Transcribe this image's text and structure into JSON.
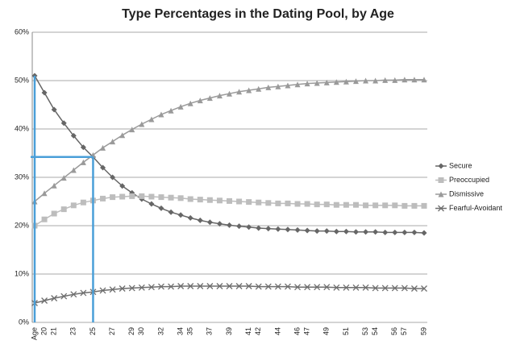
{
  "chart_data": {
    "type": "line",
    "title": "Type Percentages in the Dating Pool, by Age",
    "categories": [
      "Age",
      "20",
      "21",
      null,
      "23",
      null,
      "25",
      null,
      "27",
      null,
      "29",
      "30",
      null,
      "32",
      null,
      "34",
      "35",
      null,
      "37",
      null,
      "39",
      null,
      "41",
      "42",
      null,
      "44",
      null,
      "46",
      "47",
      null,
      "49",
      null,
      "51",
      null,
      "53",
      "54",
      null,
      "56",
      "57",
      null,
      "59"
    ],
    "series": [
      {
        "name": "Secure",
        "color": "#666666",
        "marker": "diamond",
        "values": [
          51,
          47.5,
          44,
          41.2,
          38.6,
          36.2,
          34.2,
          32,
          30,
          28.2,
          26.8,
          25.5,
          24.5,
          23.6,
          22.8,
          22.2,
          21.6,
          21.1,
          20.7,
          20.4,
          20.1,
          19.9,
          19.7,
          19.5,
          19.4,
          19.3,
          19.2,
          19.1,
          19,
          18.9,
          18.9,
          18.8,
          18.8,
          18.7,
          18.7,
          18.7,
          18.6,
          18.6,
          18.6,
          18.6,
          18.5
        ]
      },
      {
        "name": "Preoccupied",
        "color": "#bdbdbd",
        "marker": "square",
        "values": [
          20,
          21.3,
          22.5,
          23.4,
          24.2,
          24.8,
          25.2,
          25.6,
          25.9,
          26,
          26.1,
          26.1,
          26,
          25.9,
          25.8,
          25.7,
          25.5,
          25.4,
          25.3,
          25.2,
          25.1,
          25,
          24.9,
          24.8,
          24.7,
          24.6,
          24.6,
          24.5,
          24.5,
          24.4,
          24.4,
          24.3,
          24.3,
          24.3,
          24.2,
          24.2,
          24.2,
          24.2,
          24.1,
          24.1,
          24.1
        ]
      },
      {
        "name": "Dismissive",
        "color": "#9a9a9a",
        "marker": "triangle",
        "values": [
          25,
          26.7,
          28.3,
          29.9,
          31.5,
          33.1,
          34.6,
          36.1,
          37.4,
          38.7,
          39.9,
          41,
          42,
          43,
          43.8,
          44.6,
          45.3,
          45.9,
          46.4,
          46.9,
          47.3,
          47.7,
          48,
          48.3,
          48.6,
          48.8,
          49,
          49.2,
          49.4,
          49.5,
          49.6,
          49.7,
          49.8,
          49.9,
          50,
          50,
          50.1,
          50.1,
          50.2,
          50.2,
          50.2
        ]
      },
      {
        "name": "Fearful-Avoidant",
        "color": "#6e6e6e",
        "marker": "x",
        "values": [
          4,
          4.5,
          5,
          5.4,
          5.8,
          6.1,
          6.3,
          6.6,
          6.8,
          7,
          7.1,
          7.2,
          7.3,
          7.4,
          7.4,
          7.5,
          7.5,
          7.5,
          7.5,
          7.5,
          7.5,
          7.5,
          7.5,
          7.4,
          7.4,
          7.4,
          7.4,
          7.3,
          7.3,
          7.3,
          7.3,
          7.2,
          7.2,
          7.2,
          7.2,
          7.1,
          7.1,
          7.1,
          7.1,
          7,
          7
        ]
      }
    ],
    "ylim": [
      0,
      60
    ],
    "yticks": [
      {
        "value": 0,
        "label": "0%"
      },
      {
        "value": 10,
        "label": "10%"
      },
      {
        "value": 20,
        "label": "20%"
      },
      {
        "value": 30,
        "label": "30%"
      },
      {
        "value": 40,
        "label": "40%"
      },
      {
        "value": 50,
        "label": "50%"
      },
      {
        "value": 60,
        "label": "60%"
      }
    ],
    "grid": true,
    "legend": "right"
  }
}
